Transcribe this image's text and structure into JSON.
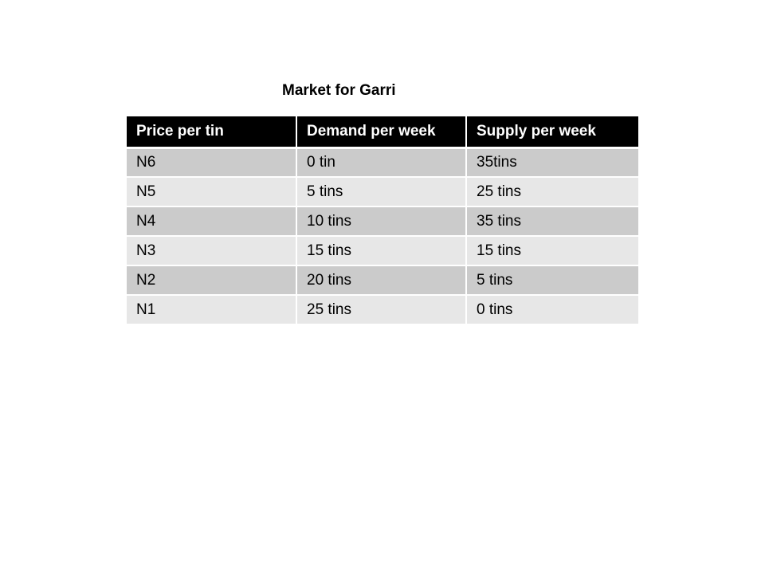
{
  "title": "Market for Garri",
  "table": {
    "headers": [
      "Price per tin",
      "Demand per week",
      "Supply per week"
    ],
    "rows": [
      [
        "N6",
        "0 tin",
        "35tins"
      ],
      [
        "N5",
        "5 tins",
        "25 tins"
      ],
      [
        "N4",
        "10 tins",
        "35 tins"
      ],
      [
        "N3",
        "15 tins",
        "15 tins"
      ],
      [
        "N2",
        "20 tins",
        "5 tins"
      ],
      [
        "N1",
        "25 tins",
        "0 tins"
      ]
    ]
  },
  "colors": {
    "header_bg": "#000000",
    "header_text": "#ffffff",
    "row_dark": "#cbcbcb",
    "row_light": "#e7e7e7"
  }
}
